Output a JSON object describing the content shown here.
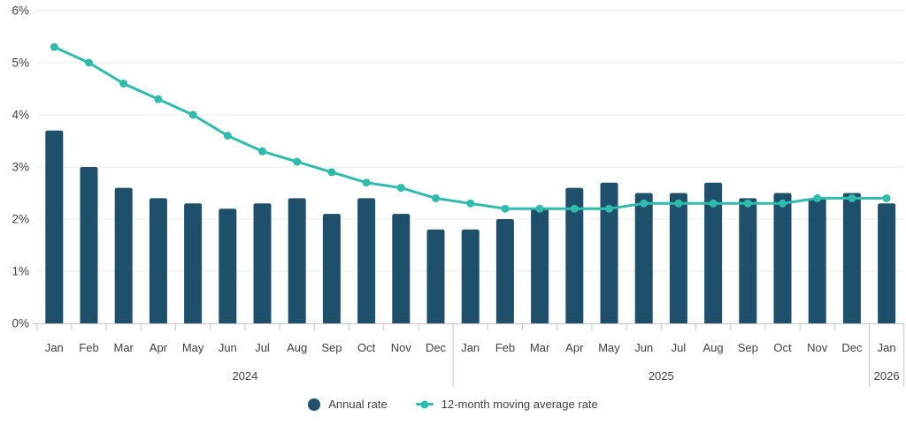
{
  "chart_data": {
    "type": "bar",
    "title": "",
    "categories": [
      "Jan",
      "Feb",
      "Mar",
      "Apr",
      "May",
      "Jun",
      "Jul",
      "Aug",
      "Sep",
      "Oct",
      "Nov",
      "Dec",
      "Jan",
      "Feb",
      "Mar",
      "Apr",
      "May",
      "Jun",
      "Jul",
      "Aug",
      "Sep",
      "Oct",
      "Nov",
      "Dec",
      "Jan"
    ],
    "year_groups": [
      {
        "label": "2024",
        "start": 0,
        "count": 12
      },
      {
        "label": "2025",
        "start": 12,
        "count": 12
      },
      {
        "label": "2026",
        "start": 24,
        "count": 1
      }
    ],
    "series": [
      {
        "name": "Annual rate",
        "type": "bar",
        "color": "#1F506B",
        "values": [
          3.7,
          3.0,
          2.6,
          2.4,
          2.3,
          2.2,
          2.3,
          2.4,
          2.1,
          2.4,
          2.1,
          1.8,
          1.8,
          2.0,
          2.2,
          2.6,
          2.7,
          2.5,
          2.5,
          2.7,
          2.4,
          2.5,
          2.4,
          2.5,
          2.3
        ]
      },
      {
        "name": "12-month moving average rate",
        "type": "line",
        "color": "#30BCAC",
        "values": [
          5.3,
          5.0,
          4.6,
          4.3,
          4.0,
          3.6,
          3.3,
          3.1,
          2.9,
          2.7,
          2.6,
          2.4,
          2.3,
          2.2,
          2.2,
          2.2,
          2.2,
          2.3,
          2.3,
          2.3,
          2.3,
          2.3,
          2.4,
          2.4,
          2.4
        ]
      }
    ],
    "ylim": [
      0,
      6
    ],
    "y_ticks": [
      "0%",
      "1%",
      "2%",
      "3%",
      "4%",
      "5%",
      "6%"
    ],
    "grid": true,
    "legend_position": "bottom",
    "colors": {
      "grid": "#EBEBEB",
      "axis": "#C6C6C6",
      "text": "#414042"
    }
  }
}
